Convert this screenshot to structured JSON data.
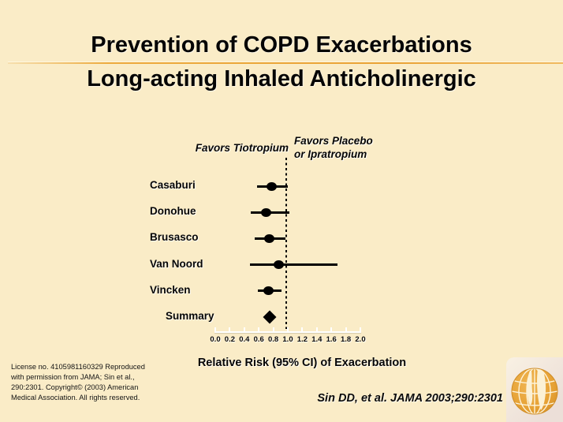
{
  "slide": {
    "title_line1": "Prevention of COPD Exacerbations",
    "title_line2": "Long-acting Inhaled Anticholinergic"
  },
  "plot": {
    "favors_left": "Favors Tiotropium",
    "favors_right_line1": "Favors Placebo",
    "favors_right_line2": "or Ipratropium",
    "xlabel": "Relative Risk (95% CI) of Exacerbation"
  },
  "chart_data": {
    "type": "scatter",
    "subtype": "forest-plot",
    "title": "Prevention of COPD Exacerbations — Long-acting Inhaled Anticholinergic",
    "xlabel": "Relative Risk (95% CI) of Exacerbation",
    "xlim": [
      0.0,
      2.0
    ],
    "x_ticks": [
      0.0,
      0.2,
      0.4,
      0.6,
      0.8,
      1.0,
      1.2,
      1.4,
      1.6,
      1.8,
      2.0
    ],
    "reference_line_x": 1.0,
    "grid": false,
    "studies": [
      {
        "label": "Casaburi",
        "rr": 0.79,
        "ci_low": 0.59,
        "ci_high": 1.01,
        "marker": "circle",
        "indent": false
      },
      {
        "label": "Donohue",
        "rr": 0.71,
        "ci_low": 0.5,
        "ci_high": 1.03,
        "marker": "circle",
        "indent": false
      },
      {
        "label": "Brusasco",
        "rr": 0.75,
        "ci_low": 0.55,
        "ci_high": 0.98,
        "marker": "circle",
        "indent": false
      },
      {
        "label": "Van Noord",
        "rr": 0.89,
        "ci_low": 0.49,
        "ci_high": 1.7,
        "marker": "circle",
        "indent": false
      },
      {
        "label": "Vincken",
        "rr": 0.74,
        "ci_low": 0.6,
        "ci_high": 0.92,
        "marker": "circle",
        "indent": false
      },
      {
        "label": "Summary",
        "rr": 0.76,
        "ci_low": null,
        "ci_high": null,
        "marker": "diamond",
        "indent": true
      }
    ]
  },
  "footer": {
    "license_lines": [
      "License no. 4105981160329   Reproduced",
      "with permission from JAMA; Sin et al.,",
      "290:2301.   Copyright© (2003) American",
      "Medical Association. All rights reserved."
    ],
    "citation": "Sin DD, et al. JAMA 2003;290:2301"
  },
  "logo": {
    "name": "globe-logo"
  },
  "colors": {
    "background": "#faecc7",
    "title_separator": "#eca93c",
    "marker": "#000000",
    "axis": "#ffffff",
    "logo_gold": "#e8a63c",
    "text": "#060606"
  }
}
